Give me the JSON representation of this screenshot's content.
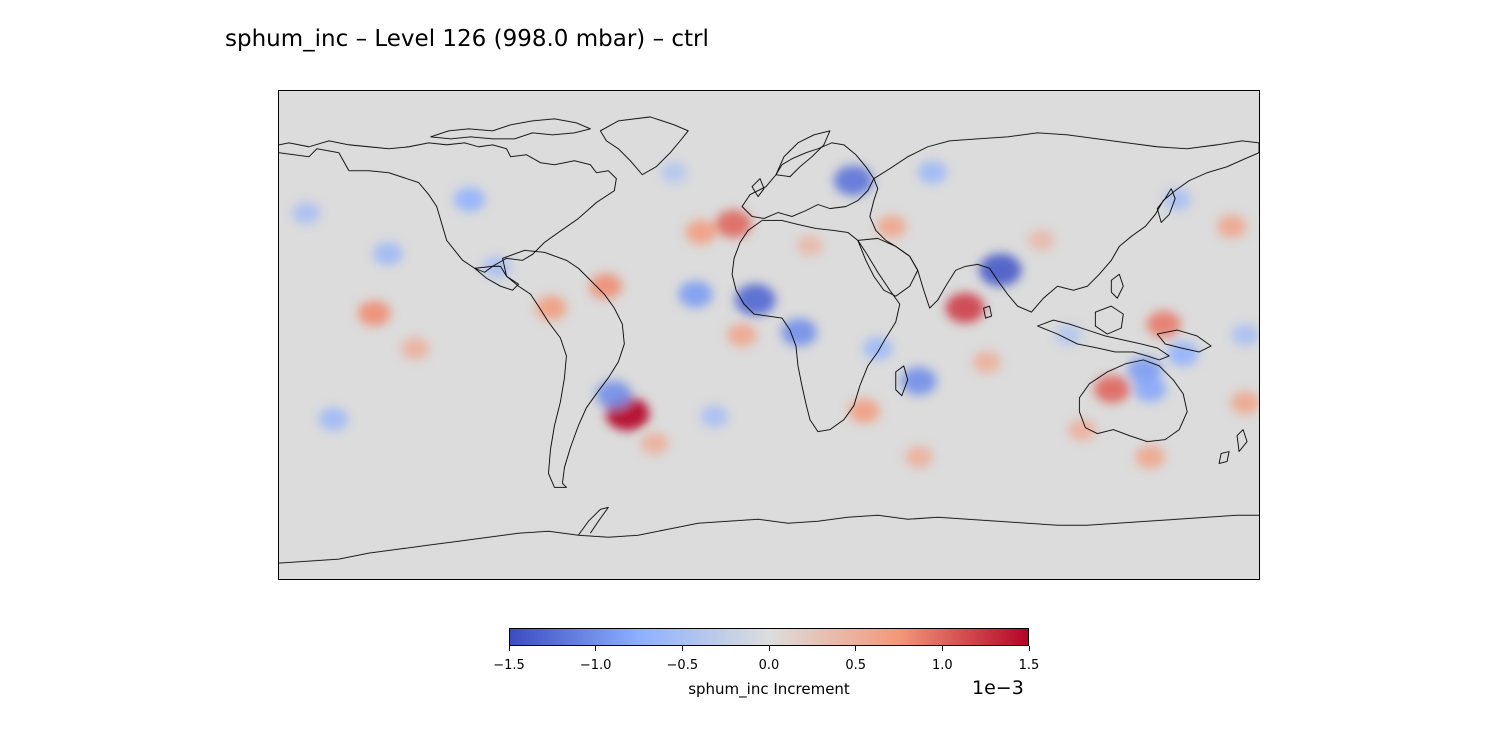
{
  "title": "sphum_inc – Level 126 (998.0 mbar) – ctrl",
  "colorbar": {
    "label": "sphum_inc Increment",
    "exponent": "1e−3",
    "min": -1.5,
    "max": 1.5,
    "ticks": [
      "−1.5",
      "−1.0",
      "−0.5",
      "0.0",
      "0.5",
      "1.0",
      "1.5"
    ],
    "tick_values": [
      -1.5,
      -1.0,
      -0.5,
      0.0,
      0.5,
      1.0,
      1.5
    ],
    "colormap": "coolwarm",
    "colors": [
      "#3b4cc0",
      "#8db0fe",
      "#dddddd",
      "#f4987a",
      "#b40426"
    ]
  },
  "map": {
    "projection": "PlateCarree",
    "background_color": "#dcdcdc",
    "coastline_color": "#000000",
    "increment_blobs": [
      {
        "lon": -52,
        "lat": -29,
        "value": 1.5
      },
      {
        "lon": 85,
        "lat": 24,
        "value": -1.4
      },
      {
        "lon": 72,
        "lat": 10,
        "value": 1.2
      },
      {
        "lon": 31,
        "lat": 57,
        "value": -1.2
      },
      {
        "lon": -5,
        "lat": 13,
        "value": -1.3
      },
      {
        "lon": 11,
        "lat": 1,
        "value": -1.0
      },
      {
        "lon": 55,
        "lat": -17,
        "value": -1.0
      },
      {
        "lon": 126,
        "lat": -20,
        "value": 1.0
      },
      {
        "lon": -13,
        "lat": 41,
        "value": 1.0
      },
      {
        "lon": -27,
        "lat": 15,
        "value": -0.9
      },
      {
        "lon": -57,
        "lat": -22,
        "value": -1.0
      },
      {
        "lon": -145,
        "lat": 8,
        "value": 0.8
      },
      {
        "lon": -60,
        "lat": 18,
        "value": 0.8
      },
      {
        "lon": 145,
        "lat": 4,
        "value": 0.9
      },
      {
        "lon": 138,
        "lat": -13,
        "value": -0.9
      },
      {
        "lon": 152,
        "lat": -7,
        "value": -0.7
      },
      {
        "lon": -25,
        "lat": 38,
        "value": 0.7
      },
      {
        "lon": 35,
        "lat": -28,
        "value": 0.7
      },
      {
        "lon": -10,
        "lat": 0,
        "value": 0.6
      },
      {
        "lon": 140,
        "lat": -20,
        "value": -0.8
      },
      {
        "lon": 175,
        "lat": 0,
        "value": -0.5
      },
      {
        "lon": -140,
        "lat": 30,
        "value": -0.6
      },
      {
        "lon": -160,
        "lat": -31,
        "value": -0.6
      },
      {
        "lon": -42,
        "lat": -40,
        "value": 0.5
      },
      {
        "lon": 45,
        "lat": 40,
        "value": 0.6
      },
      {
        "lon": 60,
        "lat": 60,
        "value": -0.6
      },
      {
        "lon": 40,
        "lat": -5,
        "value": -0.6
      },
      {
        "lon": 100,
        "lat": 35,
        "value": 0.4
      },
      {
        "lon": -110,
        "lat": 50,
        "value": -0.7
      },
      {
        "lon": 175,
        "lat": -25,
        "value": 0.6
      },
      {
        "lon": 140,
        "lat": -45,
        "value": 0.6
      },
      {
        "lon": -170,
        "lat": 45,
        "value": -0.5
      },
      {
        "lon": 170,
        "lat": 40,
        "value": 0.6
      },
      {
        "lon": 55,
        "lat": -45,
        "value": 0.5
      },
      {
        "lon": -80,
        "lat": 10,
        "value": 0.7
      },
      {
        "lon": -100,
        "lat": 25,
        "value": -0.5
      },
      {
        "lon": 150,
        "lat": 50,
        "value": -0.5
      },
      {
        "lon": -20,
        "lat": -30,
        "value": -0.5
      },
      {
        "lon": 110,
        "lat": 0,
        "value": -0.4
      },
      {
        "lon": 80,
        "lat": -10,
        "value": 0.5
      },
      {
        "lon": -130,
        "lat": -5,
        "value": 0.5
      },
      {
        "lon": 15,
        "lat": 33,
        "value": 0.4
      },
      {
        "lon": 115,
        "lat": -35,
        "value": 0.5
      },
      {
        "lon": -35,
        "lat": 60,
        "value": -0.4
      }
    ]
  }
}
